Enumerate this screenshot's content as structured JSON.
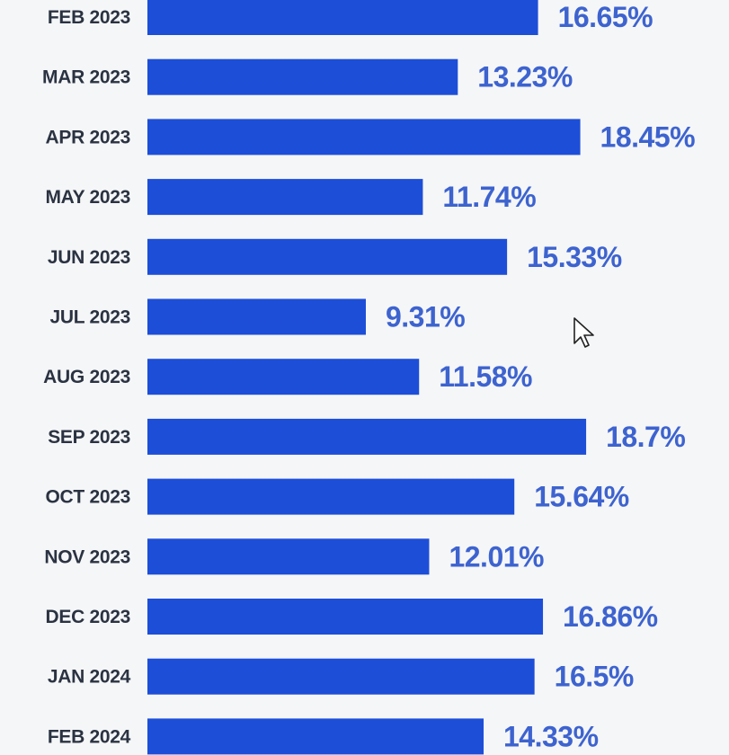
{
  "chart_data": {
    "type": "bar",
    "orientation": "horizontal",
    "categories": [
      "FEB 2023",
      "MAR 2023",
      "APR 2023",
      "MAY 2023",
      "JUN 2023",
      "JUL 2023",
      "AUG 2023",
      "SEP 2023",
      "OCT 2023",
      "NOV 2023",
      "DEC 2023",
      "JAN 2024",
      "FEB 2024"
    ],
    "values": [
      16.65,
      13.23,
      18.45,
      11.74,
      15.33,
      9.31,
      11.58,
      18.7,
      15.64,
      12.01,
      16.86,
      16.5,
      14.33
    ],
    "value_labels": [
      "16.65%",
      "13.23%",
      "18.45%",
      "11.74%",
      "15.33%",
      "9.31%",
      "11.58%",
      "18.7%",
      "15.64%",
      "12.01%",
      "16.86%",
      "16.5%",
      "14.33%"
    ],
    "title": "",
    "xlabel": "",
    "ylabel": "",
    "grid": false,
    "legend": "none"
  },
  "colors": {
    "bar": "#1d4ed8",
    "value_label": "#3d63cf",
    "category_label": "#2b3342",
    "background": "#f5f6f8"
  },
  "icons": {
    "cursor": "mouse-pointer-icon"
  }
}
